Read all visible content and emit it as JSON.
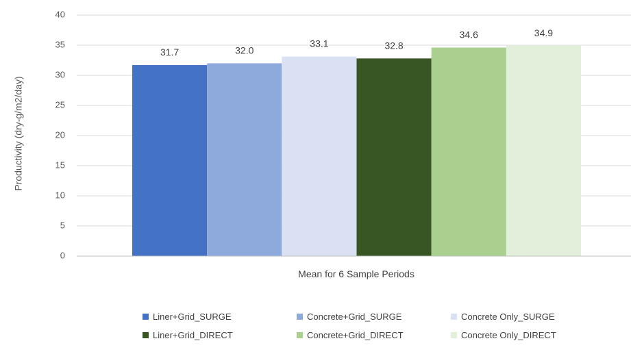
{
  "chart_data": {
    "type": "bar",
    "categories": [
      "Mean for 6 Sample Periods"
    ],
    "series": [
      {
        "name": "Liner+Grid_SURGE",
        "values": [
          31.7
        ],
        "color": "#4472C4"
      },
      {
        "name": "Concrete+Grid_SURGE",
        "values": [
          32.0
        ],
        "color": "#8EA9DB"
      },
      {
        "name": "Concrete Only_SURGE",
        "values": [
          33.1
        ],
        "color": "#D9E1F2"
      },
      {
        "name": "Liner+Grid_DIRECT",
        "values": [
          32.8
        ],
        "color": "#375623"
      },
      {
        "name": "Concrete+Grid_DIRECT",
        "values": [
          34.6
        ],
        "color": "#A9D08E"
      },
      {
        "name": "Concrete Only_DIRECT",
        "values": [
          34.9
        ],
        "color": "#E2EFDA"
      }
    ],
    "data_labels": [
      "31.7",
      "32.0",
      "33.1",
      "32.8",
      "34.6",
      "34.9"
    ],
    "title": "",
    "xlabel": "Mean for 6 Sample Periods",
    "ylabel": "Productivity (dry-g/m2/day)",
    "ylim": [
      0,
      40
    ],
    "yticks": [
      0,
      5,
      10,
      15,
      20,
      25,
      30,
      35,
      40
    ],
    "grid": true,
    "legend_position": "bottom"
  }
}
